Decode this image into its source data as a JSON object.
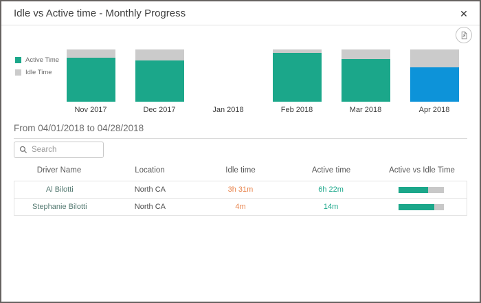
{
  "dialog": {
    "title": "Idle vs Active time - Monthly Progress",
    "close_label": "✕"
  },
  "toolbar": {
    "export_icon": "export-report-icon"
  },
  "colors": {
    "active_teal": "#1ba78a",
    "idle_gray": "#cbcbcb",
    "selected_blue": "#0d93d9",
    "idle_text_orange": "#e8834b",
    "active_text_teal": "#1ba78a",
    "progress_track": "#c8c8c8"
  },
  "legend": {
    "items": [
      {
        "label": "Active Time",
        "color": "#1ba78a"
      },
      {
        "label": "Idle Time",
        "color": "#cbcbcb"
      }
    ]
  },
  "chart_data": {
    "type": "bar",
    "stacked": true,
    "normalized": true,
    "categories": [
      "Nov 2017",
      "Dec 2017",
      "Jan 2018",
      "Feb 2018",
      "Mar 2018",
      "Apr 2018"
    ],
    "series": [
      {
        "name": "Active Time",
        "values": [
          84,
          79,
          null,
          93,
          82,
          66
        ]
      },
      {
        "name": "Idle Time",
        "values": [
          16,
          21,
          null,
          7,
          18,
          34
        ]
      }
    ],
    "unit": "percent_of_bar_height",
    "selected_category": "Apr 2018",
    "selected_color": "#0d93d9",
    "legend_position": "left",
    "title": "Idle vs Active time - Monthly Progress"
  },
  "period": {
    "label": "From 04/01/2018 to 04/28/2018"
  },
  "search": {
    "placeholder": "Search",
    "value": ""
  },
  "table": {
    "columns": [
      "Driver Name",
      "Location",
      "Idle time",
      "Active time",
      "Active vs Idle Time"
    ],
    "rows": [
      {
        "driver": "Al Bilotti",
        "location": "North CA",
        "idle": "3h 31m",
        "active": "6h 22m",
        "active_pct": 65
      },
      {
        "driver": "Stephanie Bilotti",
        "location": "North CA",
        "idle": "4m",
        "active": "14m",
        "active_pct": 78
      }
    ]
  }
}
